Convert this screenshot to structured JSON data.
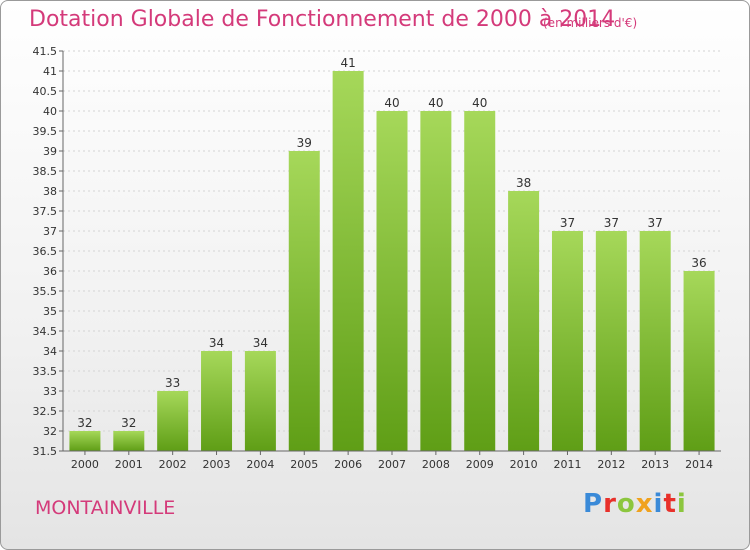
{
  "header": {
    "title": "Dotation Globale de Fonctionnement de 2000 à 2014",
    "subtitle": "(en milliers d'€)"
  },
  "footer": {
    "commune": "MONTAINVILLE",
    "logo_letters": [
      "P",
      "r",
      "o",
      "x",
      "i",
      "t",
      "i"
    ],
    "logo_colors": [
      "#3a8ad8",
      "#e8302a",
      "#8cc63e",
      "#f0a21e",
      "#3a8ad8",
      "#e8302a",
      "#8cc63e"
    ]
  },
  "chart_data": {
    "type": "bar",
    "title": "Dotation Globale de Fonctionnement de 2000 à 2014",
    "subtitle": "(en milliers d'€)",
    "categories": [
      "2000",
      "2001",
      "2002",
      "2003",
      "2004",
      "2005",
      "2006",
      "2007",
      "2008",
      "2009",
      "2010",
      "2011",
      "2012",
      "2013",
      "2014"
    ],
    "values": [
      32,
      32,
      33,
      34,
      34,
      39,
      41,
      40,
      40,
      40,
      38,
      37,
      37,
      37,
      36
    ],
    "data_labels": [
      "32",
      "32",
      "33",
      "34",
      "34",
      "39",
      "41",
      "40",
      "40",
      "40",
      "38",
      "37",
      "37",
      "37",
      "36"
    ],
    "xlabel": "",
    "ylabel": "",
    "ylim": [
      31.5,
      41.5
    ],
    "yticks": [
      "31.5",
      "32",
      "32.5",
      "33",
      "33.5",
      "34",
      "34.5",
      "35",
      "35.5",
      "36",
      "36.5",
      "37",
      "37.5",
      "38",
      "38.5",
      "39",
      "39.5",
      "40",
      "40.5",
      "41",
      "41.5"
    ],
    "grid": true,
    "bar_color": "#7cbf2e",
    "bar_color_light": "#a6d85a"
  }
}
